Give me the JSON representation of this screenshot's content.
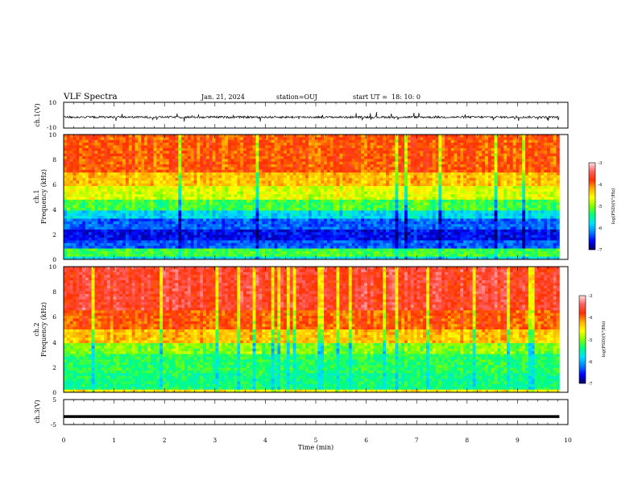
{
  "header": {
    "title": "VLF Spectra",
    "date": "Jan. 21, 2024",
    "station": "station=OUJ",
    "start_ut": "start UT =  18: 10: 0"
  },
  "colors": {
    "spectrogram_scale": [
      "#00005a",
      "#0000ff",
      "#0080ff",
      "#00e0ff",
      "#00ff80",
      "#80ff00",
      "#ffff00",
      "#ffb000",
      "#ff3000",
      "#ff6060",
      "#ffe0e0"
    ],
    "trace": "#000000"
  },
  "chart_data": [
    {
      "id": "ch1-waveform",
      "type": "line",
      "ylabel": "ch.1(V)",
      "ylim": [
        -10,
        10
      ],
      "yticks": [
        "10",
        "-10"
      ],
      "xlim": [
        0,
        10
      ],
      "series": [
        {
          "x": [
            0,
            9.83
          ],
          "y": [
            -1.5,
            -1.5
          ]
        }
      ],
      "grid": false
    },
    {
      "id": "ch1-spectrogram",
      "type": "heatmap",
      "ylabel_lines": [
        "ch.1",
        "Frequency (kHz)"
      ],
      "ylim": [
        0,
        10
      ],
      "yticks": [
        "0",
        "2",
        "4",
        "6",
        "8",
        "10"
      ],
      "xlim": [
        0,
        10
      ],
      "data_end_min": 9.83,
      "frequency_bands_khz": [
        0,
        0.3,
        0.8,
        1.5,
        2.5,
        3.3,
        4.0,
        4.8,
        5.8,
        7.0,
        10.0
      ],
      "log_psd_levels": [
        -5.8,
        -5.2,
        -6.3,
        -6.6,
        -6.3,
        -5.8,
        -5.2,
        -4.7,
        -4.3,
        -3.9
      ],
      "colorbar": {
        "label": "log(PSD)(V²/Hz)",
        "range": [
          -7,
          -3
        ],
        "ticks": [
          "-3",
          "-4",
          "-5",
          "-6",
          "-7"
        ]
      },
      "grid": false
    },
    {
      "id": "ch2-spectrogram",
      "type": "heatmap",
      "ylabel_lines": [
        "ch.2",
        "Frequency (kHz)"
      ],
      "ylim": [
        0,
        10
      ],
      "yticks": [
        "0",
        "2",
        "4",
        "6",
        "8",
        "10"
      ],
      "xlim": [
        0,
        10
      ],
      "data_end_min": 9.83,
      "frequency_bands_khz": [
        0,
        0.3,
        1.5,
        3.0,
        4.0,
        5.0,
        6.5,
        10.0
      ],
      "log_psd_levels": [
        -4.5,
        -5.4,
        -5.3,
        -5.0,
        -4.3,
        -3.9,
        -3.6
      ],
      "colorbar": {
        "label": "log(PSD)(V²/Hz)",
        "range": [
          -7,
          -3
        ],
        "ticks": [
          "-3",
          "-4",
          "-5",
          "-6",
          "-7"
        ]
      },
      "grid": false
    },
    {
      "id": "ch3-waveform",
      "type": "line",
      "ylabel": "ch.3(V)",
      "ylim": [
        -5,
        5
      ],
      "yticks": [
        "5",
        "-5"
      ],
      "xlim": [
        0,
        10
      ],
      "series": [
        {
          "x": [
            0,
            9.83
          ],
          "y": [
            -1.8,
            -1.8
          ]
        }
      ],
      "grid": false
    }
  ],
  "time_axis": {
    "label": "Time (min)",
    "range": [
      0,
      10
    ],
    "ticks": [
      "0",
      "1",
      "2",
      "3",
      "4",
      "5",
      "6",
      "7",
      "8",
      "9",
      "10"
    ]
  }
}
